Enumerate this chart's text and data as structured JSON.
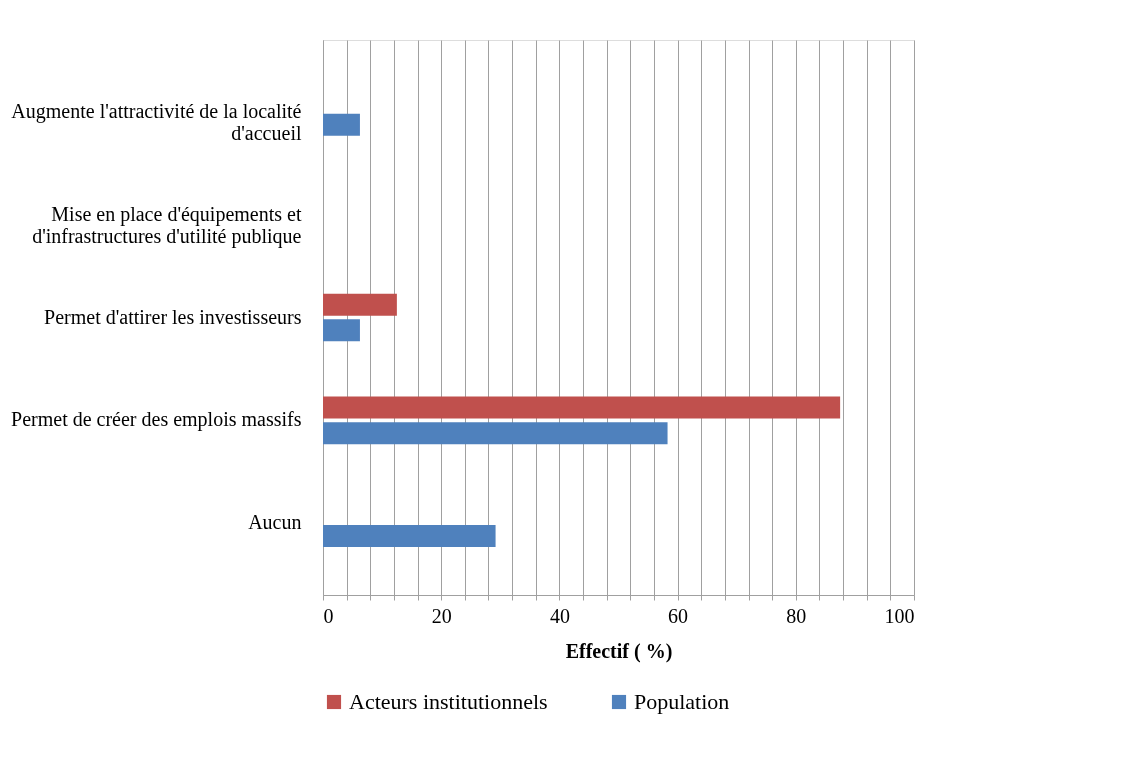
{
  "chart_data": {
    "type": "bar",
    "orientation": "horizontal",
    "xlabel": "Effectif ( %)",
    "categories": [
      "Augmente l'attractivité de la localité d'accueil",
      "Mise en place d'équipements et d'infrastructures d'utilité publique",
      "Permet d'attirer les investisseurs",
      "Permet de créer des emplois massifs",
      "Aucun"
    ],
    "series": [
      {
        "name": "Acteurs institutionnels",
        "color": "#c0504d",
        "values": [
          null,
          null,
          12.5,
          87.5,
          null
        ]
      },
      {
        "name": "Population",
        "color": "#4f81bd",
        "values": [
          6.25,
          null,
          6.25,
          58.3,
          29.2
        ]
      }
    ],
    "xlim": [
      0,
      100
    ],
    "xticks": [
      0,
      {
        "value": 4,
        "label": null
      },
      {
        "value": 8,
        "label": null
      },
      {
        "value": 12,
        "label": null
      },
      {
        "value": 16,
        "label": null
      },
      20,
      {
        "value": 24,
        "label": null
      },
      {
        "value": 28,
        "label": null
      },
      {
        "value": 32,
        "label": null
      },
      {
        "value": 36,
        "label": null
      },
      40,
      {
        "value": 44,
        "label": null
      },
      {
        "value": 48,
        "label": null
      },
      {
        "value": 52,
        "label": null
      },
      {
        "value": 56,
        "label": null
      },
      60,
      {
        "value": 64,
        "label": null
      },
      {
        "value": 68,
        "label": null
      },
      {
        "value": 72,
        "label": null
      },
      {
        "value": 76,
        "label": null
      },
      80,
      {
        "value": 84,
        "label": null
      },
      {
        "value": 88,
        "label": null
      },
      {
        "value": 92,
        "label": null
      },
      {
        "value": 96,
        "label": null
      },
      100
    ],
    "grid": "x",
    "legend": "bottom"
  }
}
